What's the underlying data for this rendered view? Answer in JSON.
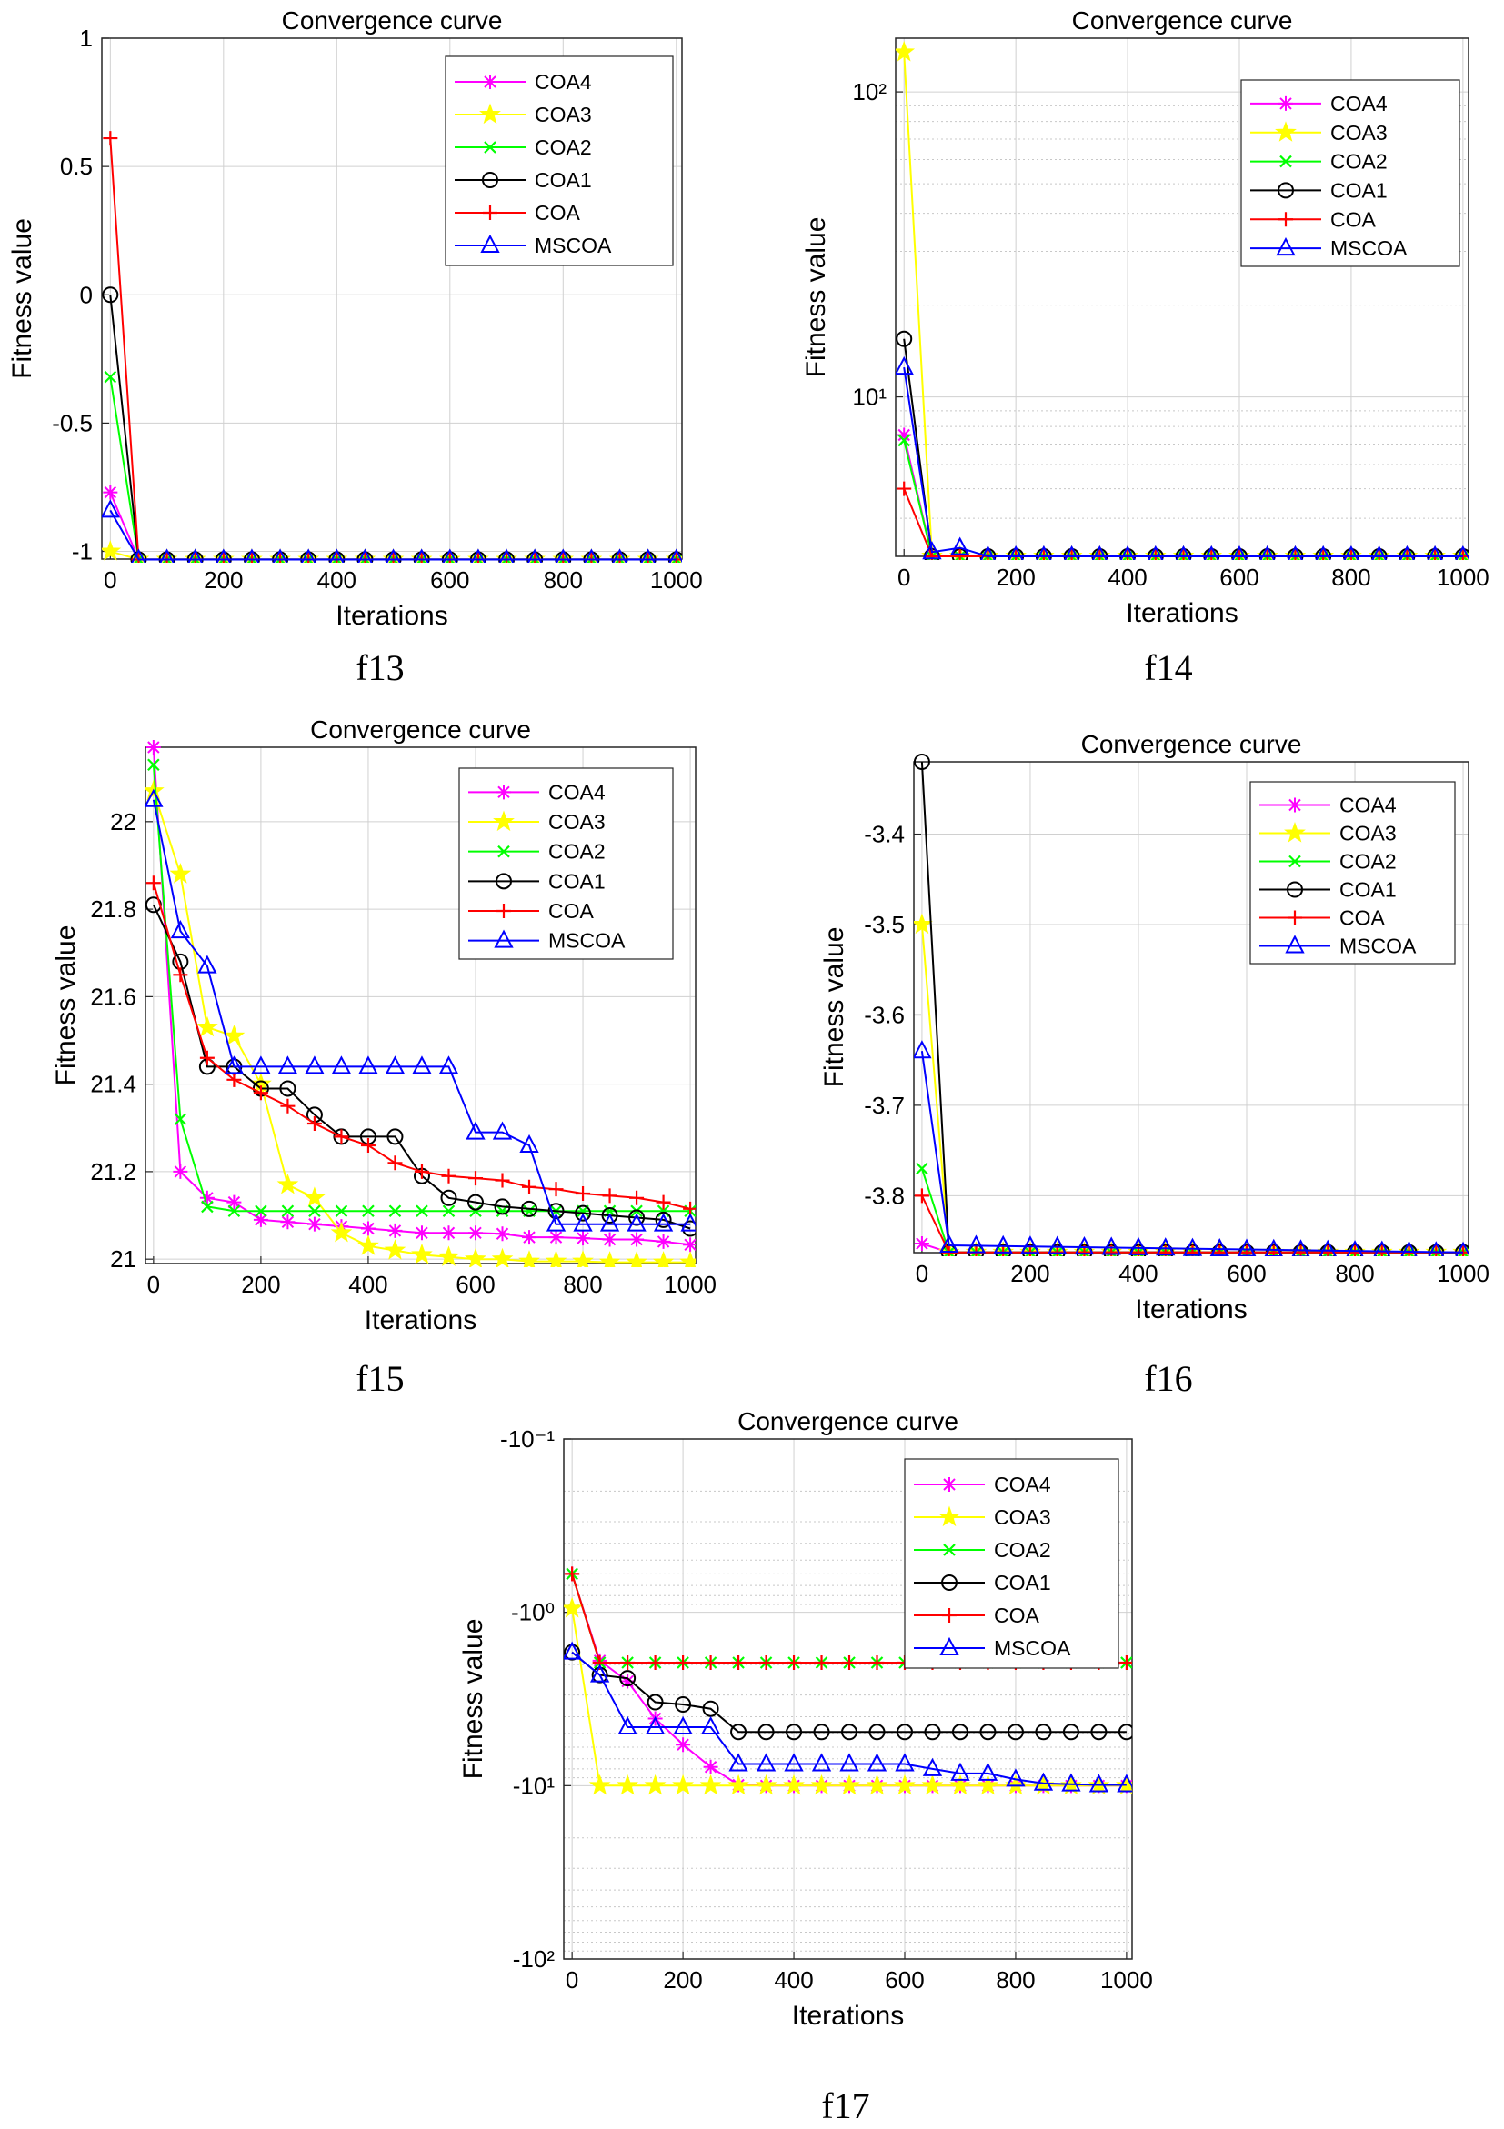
{
  "chart_data": [
    {
      "type": "line",
      "caption": "f13",
      "title": "Convergence curve",
      "xlabel": "Iterations",
      "ylabel": "Fitness value",
      "xlim": [
        -15,
        1010
      ],
      "ylim": [
        -1.03,
        1.0
      ],
      "yscale": "linear",
      "xticks": [
        0,
        200,
        400,
        600,
        800,
        1000
      ],
      "yticks": [
        1,
        0.5,
        0,
        -0.5,
        -1
      ],
      "yticklabels": [
        "1",
        "0.5",
        "0",
        "-0.5",
        "-1"
      ],
      "grid": true,
      "legend_position": "top-right",
      "series": [
        {
          "name": "COA4",
          "color": "#ff00ff",
          "marker": "asterisk",
          "x": [
            0,
            50,
            1000
          ],
          "y": [
            -0.77,
            -1.0316,
            -1.0316
          ]
        },
        {
          "name": "COA3",
          "color": "#ffff00",
          "marker": "star",
          "x": [
            0,
            50,
            1000
          ],
          "y": [
            -1.0,
            -1.0316,
            -1.0316
          ]
        },
        {
          "name": "COA2",
          "color": "#00ff00",
          "marker": "x",
          "x": [
            0,
            50,
            1000
          ],
          "y": [
            -0.32,
            -1.0316,
            -1.0316
          ]
        },
        {
          "name": "COA1",
          "color": "#000000",
          "marker": "circle",
          "x": [
            0,
            50,
            1000
          ],
          "y": [
            0.0,
            -1.0316,
            -1.0316
          ]
        },
        {
          "name": "COA",
          "color": "#ff0000",
          "marker": "plus",
          "x": [
            0,
            50,
            1000
          ],
          "y": [
            0.61,
            -1.0316,
            -1.0316
          ]
        },
        {
          "name": "MSCOA",
          "color": "#0000ff",
          "marker": "triangle",
          "x": [
            0,
            50,
            1000
          ],
          "y": [
            -0.84,
            -1.0316,
            -1.0316
          ]
        }
      ]
    },
    {
      "type": "line",
      "caption": "f14",
      "title": "Convergence curve",
      "xlabel": "Iterations",
      "ylabel": "Fitness value",
      "xlim": [
        -15,
        1010
      ],
      "ylim": [
        3,
        150
      ],
      "yscale": "log",
      "xticks": [
        0,
        200,
        400,
        600,
        800,
        1000
      ],
      "yticks": [
        100,
        10
      ],
      "yticklabels": [
        "10²",
        "10¹"
      ],
      "grid": true,
      "legend_position": "top-right",
      "series": [
        {
          "name": "COA4",
          "color": "#ff00ff",
          "marker": "asterisk",
          "x": [
            0,
            50,
            1000
          ],
          "y": [
            7.5,
            3.0,
            3.0
          ]
        },
        {
          "name": "COA3",
          "color": "#ffff00",
          "marker": "star",
          "x": [
            0,
            50,
            1000
          ],
          "y": [
            135,
            3.0,
            3.0
          ]
        },
        {
          "name": "COA2",
          "color": "#00ff00",
          "marker": "x",
          "x": [
            0,
            50,
            1000
          ],
          "y": [
            7.2,
            3.0,
            3.0
          ]
        },
        {
          "name": "COA1",
          "color": "#000000",
          "marker": "circle",
          "x": [
            0,
            50,
            100,
            1000
          ],
          "y": [
            15.5,
            3.0,
            3.0,
            3.0
          ]
        },
        {
          "name": "COA",
          "color": "#ff0000",
          "marker": "plus",
          "x": [
            0,
            50,
            1000
          ],
          "y": [
            5.0,
            3.0,
            3.0
          ]
        },
        {
          "name": "MSCOA",
          "color": "#0000ff",
          "marker": "triangle",
          "x": [
            0,
            50,
            100,
            150,
            1000
          ],
          "y": [
            12.5,
            3.1,
            3.2,
            3.0,
            3.0
          ]
        }
      ]
    },
    {
      "type": "line",
      "caption": "f15",
      "title": "Convergence curve",
      "xlabel": "Iterations",
      "ylabel": "Fitness value",
      "xlim": [
        -15,
        1010
      ],
      "ylim": [
        20.99,
        22.17
      ],
      "yscale": "linear",
      "xticks": [
        0,
        200,
        400,
        600,
        800,
        1000
      ],
      "yticks": [
        21,
        21.2,
        21.4,
        21.6,
        21.8,
        22
      ],
      "yticklabels": [
        "21",
        "21.2",
        "21.4",
        "21.6",
        "21.8",
        "22"
      ],
      "grid": true,
      "legend_position": "top-right",
      "series": [
        {
          "name": "COA4",
          "color": "#ff00ff",
          "marker": "asterisk",
          "x": [
            0,
            50,
            100,
            150,
            200,
            250,
            300,
            350,
            400,
            450,
            500,
            550,
            600,
            650,
            700,
            750,
            800,
            850,
            900,
            950,
            1000
          ],
          "y": [
            22.17,
            21.2,
            21.14,
            21.13,
            21.09,
            21.085,
            21.08,
            21.075,
            21.07,
            21.065,
            21.06,
            21.06,
            21.06,
            21.058,
            21.05,
            21.05,
            21.048,
            21.045,
            21.045,
            21.04,
            21.033
          ]
        },
        {
          "name": "COA3",
          "color": "#ffff00",
          "marker": "star",
          "x": [
            0,
            50,
            100,
            150,
            200,
            250,
            300,
            350,
            400,
            450,
            500,
            550,
            600,
            650,
            700,
            750,
            800,
            850,
            900,
            950,
            1000
          ],
          "y": [
            22.07,
            21.88,
            21.53,
            21.51,
            21.4,
            21.17,
            21.14,
            21.06,
            21.03,
            21.02,
            21.01,
            21.005,
            21.0,
            21.0,
            20.995,
            20.995,
            20.995,
            20.993,
            20.993,
            20.993,
            20.993
          ]
        },
        {
          "name": "COA2",
          "color": "#00ff00",
          "marker": "x",
          "x": [
            0,
            50,
            100,
            150,
            1000
          ],
          "y": [
            22.13,
            21.32,
            21.12,
            21.11,
            21.11
          ]
        },
        {
          "name": "COA1",
          "color": "#000000",
          "marker": "circle",
          "x": [
            0,
            50,
            100,
            150,
            200,
            250,
            300,
            350,
            400,
            450,
            500,
            550,
            600,
            650,
            700,
            750,
            800,
            850,
            900,
            950,
            1000
          ],
          "y": [
            21.81,
            21.68,
            21.44,
            21.44,
            21.39,
            21.39,
            21.33,
            21.28,
            21.28,
            21.28,
            21.19,
            21.14,
            21.13,
            21.12,
            21.115,
            21.11,
            21.105,
            21.1,
            21.095,
            21.09,
            21.07
          ]
        },
        {
          "name": "COA",
          "color": "#ff0000",
          "marker": "plus",
          "x": [
            0,
            50,
            100,
            150,
            200,
            250,
            300,
            350,
            400,
            450,
            500,
            550,
            600,
            650,
            700,
            750,
            800,
            850,
            900,
            950,
            1000
          ],
          "y": [
            21.86,
            21.65,
            21.46,
            21.41,
            21.38,
            21.35,
            21.31,
            21.28,
            21.26,
            21.22,
            21.2,
            21.19,
            21.185,
            21.18,
            21.165,
            21.16,
            21.15,
            21.145,
            21.14,
            21.13,
            21.115
          ]
        },
        {
          "name": "MSCOA",
          "color": "#0000ff",
          "marker": "triangle",
          "x": [
            0,
            50,
            100,
            150,
            200,
            250,
            300,
            350,
            400,
            450,
            500,
            550,
            600,
            650,
            700,
            750,
            800,
            850,
            900,
            950,
            1000
          ],
          "y": [
            22.05,
            21.75,
            21.67,
            21.44,
            21.44,
            21.44,
            21.44,
            21.44,
            21.44,
            21.44,
            21.44,
            21.44,
            21.29,
            21.29,
            21.26,
            21.08,
            21.08,
            21.08,
            21.08,
            21.08,
            21.08
          ]
        }
      ]
    },
    {
      "type": "line",
      "caption": "f16",
      "title": "Convergence curve",
      "xlabel": "Iterations",
      "ylabel": "Fitness value",
      "xlim": [
        -15,
        1010
      ],
      "ylim": [
        -3.863,
        -3.32
      ],
      "yscale": "linear",
      "xticks": [
        0,
        200,
        400,
        600,
        800,
        1000
      ],
      "yticks": [
        -3.4,
        -3.5,
        -3.6,
        -3.7,
        -3.8
      ],
      "yticklabels": [
        "-3.4",
        "-3.5",
        "-3.6",
        "-3.7",
        "-3.8"
      ],
      "grid": true,
      "legend_position": "top-right",
      "series": [
        {
          "name": "COA4",
          "color": "#ff00ff",
          "marker": "asterisk",
          "x": [
            0,
            50,
            1000
          ],
          "y": [
            -3.853,
            -3.8628,
            -3.8628
          ]
        },
        {
          "name": "COA3",
          "color": "#ffff00",
          "marker": "star",
          "x": [
            0,
            50,
            1000
          ],
          "y": [
            -3.5,
            -3.8628,
            -3.8628
          ]
        },
        {
          "name": "COA2",
          "color": "#00ff00",
          "marker": "x",
          "x": [
            0,
            50,
            1000
          ],
          "y": [
            -3.77,
            -3.8628,
            -3.8628
          ]
        },
        {
          "name": "COA1",
          "color": "#000000",
          "marker": "circle",
          "x": [
            0,
            50,
            1000
          ],
          "y": [
            -3.32,
            -3.8628,
            -3.8628
          ]
        },
        {
          "name": "COA",
          "color": "#ff0000",
          "marker": "plus",
          "x": [
            0,
            50,
            1000
          ],
          "y": [
            -3.8,
            -3.8628,
            -3.8628
          ]
        },
        {
          "name": "MSCOA",
          "color": "#0000ff",
          "marker": "triangle",
          "x": [
            0,
            50,
            1000
          ],
          "y": [
            -3.64,
            -3.855,
            -3.8628
          ]
        }
      ]
    },
    {
      "type": "line",
      "caption": "f17",
      "title": "Convergence curve",
      "xlabel": "Iterations",
      "ylabel": "Fitness value",
      "xlim": [
        -15,
        1010
      ],
      "ylim": [
        0.1,
        100
      ],
      "yscale": "log-negative",
      "xticks": [
        0,
        200,
        400,
        600,
        800,
        1000
      ],
      "yticks": [
        0.1,
        1,
        10,
        100
      ],
      "yticklabels": [
        "-10⁻¹",
        "-10⁰",
        "-10¹",
        "-10²"
      ],
      "y_sign": -1,
      "grid": true,
      "legend_position": "top-right",
      "series": [
        {
          "name": "COA4",
          "color": "#ff00ff",
          "marker": "asterisk",
          "x": [
            0,
            50,
            100,
            150,
            200,
            250,
            300,
            350,
            400,
            450,
            500,
            550,
            600,
            650,
            700,
            750,
            800,
            850,
            900,
            950,
            1000
          ],
          "y": [
            0.6,
            1.9,
            2.5,
            4.1,
            5.8,
            7.8,
            9.9,
            10.0,
            10.0,
            10.0,
            10.0,
            10.0,
            10.0,
            10.0,
            10.0,
            10.0,
            10.0,
            10.0,
            10.0,
            10.0,
            10.0
          ]
        },
        {
          "name": "COA3",
          "color": "#ffff00",
          "marker": "star",
          "x": [
            0,
            50,
            100,
            150,
            200,
            250,
            300,
            350,
            400,
            450,
            500,
            550,
            600,
            650,
            700,
            750,
            800,
            850,
            900,
            950,
            1000
          ],
          "y": [
            0.95,
            10.0,
            10.0,
            10.0,
            10.0,
            10.0,
            10.0,
            10.0,
            10.0,
            10.0,
            10.0,
            10.0,
            10.0,
            10.0,
            10.0,
            10.0,
            10.0,
            10.0,
            10.0,
            10.0,
            10.0
          ]
        },
        {
          "name": "COA2",
          "color": "#00ff00",
          "marker": "x",
          "x": [
            0,
            50,
            100,
            150,
            200,
            250,
            300,
            350,
            400,
            450,
            500,
            550,
            600,
            650,
            700,
            750,
            800,
            850,
            900,
            950,
            1000
          ],
          "y": [
            0.6,
            1.95,
            1.95,
            1.95,
            1.95,
            1.95,
            1.95,
            1.95,
            1.95,
            1.95,
            1.95,
            1.95,
            1.95,
            1.95,
            1.95,
            1.95,
            1.95,
            1.95,
            1.95,
            1.95,
            1.95
          ]
        },
        {
          "name": "COA1",
          "color": "#000000",
          "marker": "circle",
          "x": [
            0,
            50,
            100,
            150,
            200,
            250,
            300,
            350,
            400,
            450,
            500,
            550,
            600,
            650,
            700,
            750,
            800,
            850,
            900,
            950,
            1000
          ],
          "y": [
            1.7,
            2.3,
            2.4,
            3.3,
            3.4,
            3.6,
            4.9,
            4.9,
            4.9,
            4.9,
            4.9,
            4.9,
            4.9,
            4.9,
            4.9,
            4.9,
            4.9,
            4.9,
            4.9,
            4.9,
            4.9
          ]
        },
        {
          "name": "COA",
          "color": "#ff0000",
          "marker": "plus",
          "x": [
            0,
            50,
            100,
            150,
            200,
            250,
            300,
            350,
            400,
            450,
            500,
            550,
            600,
            650,
            700,
            750,
            800,
            850,
            900,
            950,
            1000
          ],
          "y": [
            0.6,
            1.95,
            1.95,
            1.95,
            1.95,
            1.95,
            1.95,
            1.95,
            1.95,
            1.95,
            1.95,
            1.95,
            1.95,
            1.95,
            1.95,
            1.95,
            1.95,
            1.95,
            1.95,
            1.95,
            1.95
          ]
        },
        {
          "name": "MSCOA",
          "color": "#0000ff",
          "marker": "triangle",
          "x": [
            0,
            50,
            100,
            150,
            200,
            250,
            300,
            350,
            400,
            450,
            500,
            550,
            600,
            650,
            700,
            750,
            800,
            850,
            900,
            950,
            1000
          ],
          "y": [
            1.7,
            2.3,
            4.6,
            4.6,
            4.6,
            4.6,
            7.5,
            7.5,
            7.5,
            7.5,
            7.5,
            7.5,
            7.5,
            8.0,
            8.5,
            8.5,
            9.2,
            9.7,
            9.8,
            9.9,
            9.9
          ]
        }
      ]
    }
  ]
}
